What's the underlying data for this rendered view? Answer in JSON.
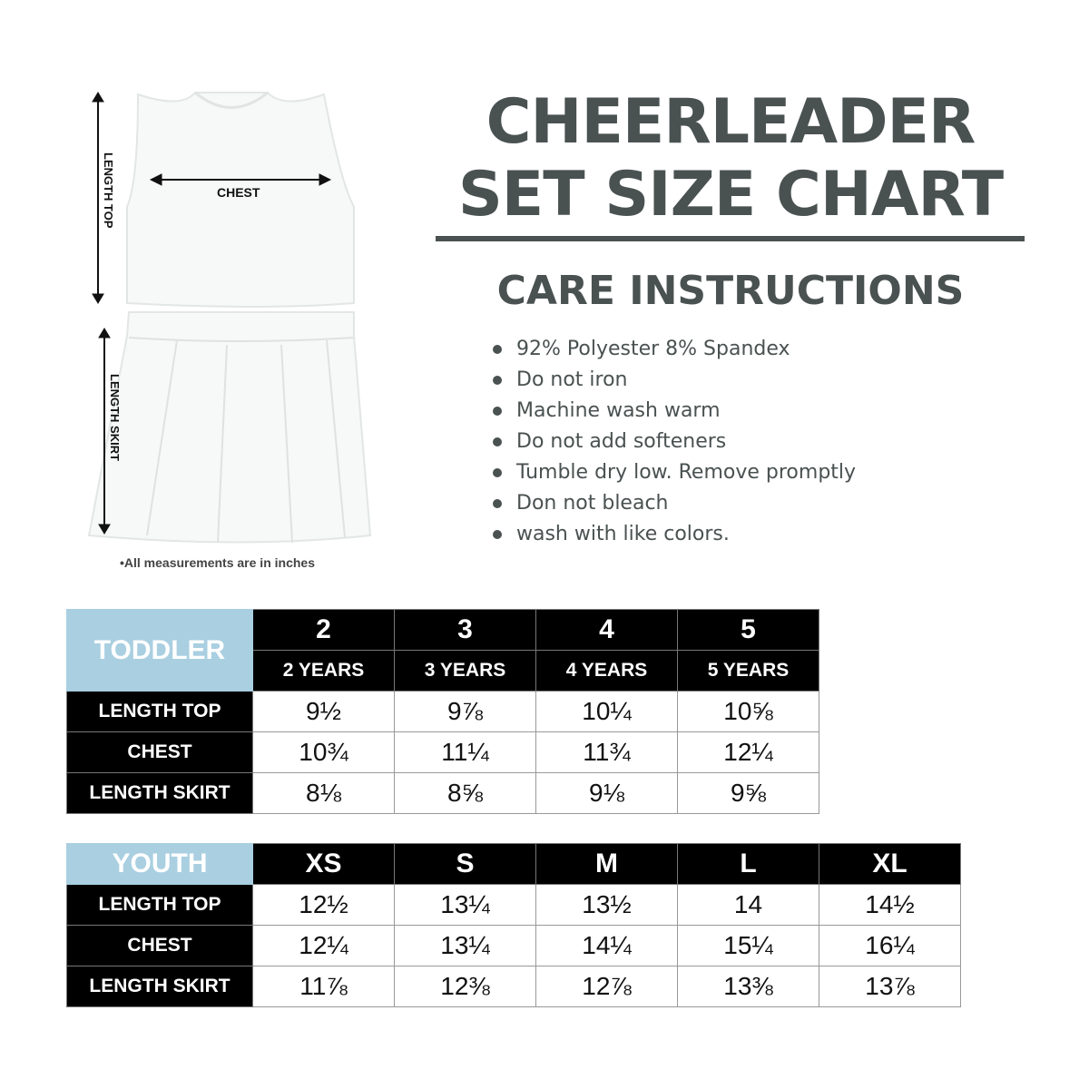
{
  "title": {
    "line1": "CHEERLEADER",
    "line2": "SET SIZE CHART"
  },
  "care": {
    "heading": "CARE INSTRUCTIONS",
    "items": [
      "92% Polyester 8% Spandex",
      "Do not iron",
      "Machine wash warm",
      "Do not add softeners",
      "Tumble dry low. Remove promptly",
      "Don not bleach",
      "wash with like colors."
    ]
  },
  "diagram": {
    "chest": "CHEST",
    "length_top": "LENGTH TOP",
    "length_skirt": "LENGTH SKIRT",
    "note": "•All measurements are in inches"
  },
  "colors": {
    "title": "#4a5151",
    "header_blue": "#a9cfe1",
    "header_black": "#000000"
  },
  "toddler": {
    "label": "TODDLER",
    "sizes": [
      "2",
      "3",
      "4",
      "5"
    ],
    "ages": [
      "2 YEARS",
      "3 YEARS",
      "4 YEARS",
      "5 YEARS"
    ],
    "rows": [
      {
        "label": "LENGTH TOP",
        "values": [
          "9½",
          "9⅞",
          "10¼",
          "10⅝"
        ]
      },
      {
        "label": "CHEST",
        "values": [
          "10¾",
          "11¼",
          "11¾",
          "12¼"
        ]
      },
      {
        "label": "LENGTH SKIRT",
        "values": [
          "8⅛",
          "8⅝",
          "9⅛",
          "9⅝"
        ]
      }
    ]
  },
  "youth": {
    "label": "YOUTH",
    "sizes": [
      "XS",
      "S",
      "M",
      "L",
      "XL"
    ],
    "rows": [
      {
        "label": "LENGTH TOP",
        "values": [
          "12½",
          "13¼",
          "13½",
          "14",
          "14½"
        ]
      },
      {
        "label": "CHEST",
        "values": [
          "12¼",
          "13¼",
          "14¼",
          "15¼",
          "16¼"
        ]
      },
      {
        "label": "LENGTH SKIRT",
        "values": [
          "11⅞",
          "12⅜",
          "12⅞",
          "13⅜",
          "13⅞"
        ]
      }
    ]
  }
}
